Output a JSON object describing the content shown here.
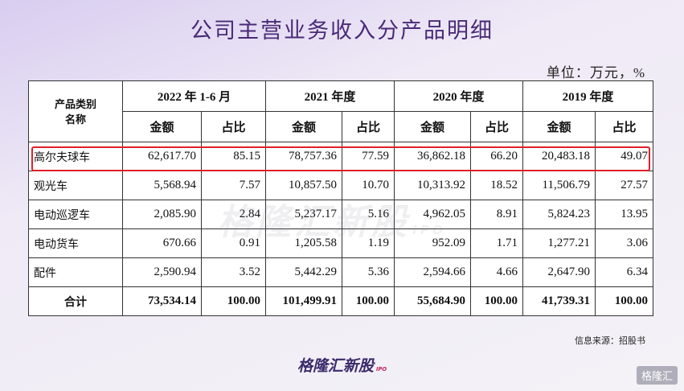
{
  "title": "公司主营业务收入分产品明细",
  "unit": "单位：万元，%",
  "table": {
    "header_top": [
      "产品类别名称",
      "2022 年 1-6 月",
      "2021 年度",
      "2020 年度",
      "2019 年度"
    ],
    "header_sub": [
      "金额",
      "占比",
      "金额",
      "占比",
      "金额",
      "占比",
      "金额",
      "占比"
    ],
    "rows": [
      [
        "高尔夫球车",
        "62,617.70",
        "85.15",
        "78,757.36",
        "77.59",
        "36,862.18",
        "66.20",
        "20,483.18",
        "49.07"
      ],
      [
        "观光车",
        "5,568.94",
        "7.57",
        "10,857.50",
        "10.70",
        "10,313.92",
        "18.52",
        "11,506.79",
        "27.57"
      ],
      [
        "电动巡逻车",
        "2,085.90",
        "2.84",
        "5,237.17",
        "5.16",
        "4,962.05",
        "8.91",
        "5,824.23",
        "13.95"
      ],
      [
        "电动货车",
        "670.66",
        "0.91",
        "1,205.58",
        "1.19",
        "952.09",
        "1.71",
        "1,277.21",
        "3.06"
      ],
      [
        "配件",
        "2,590.94",
        "3.52",
        "5,442.29",
        "5.36",
        "2,594.66",
        "4.66",
        "2,647.90",
        "6.34"
      ],
      [
        "合计",
        "73,534.14",
        "100.00",
        "101,499.91",
        "100.00",
        "55,684.90",
        "100.00",
        "41,739.31",
        "100.00"
      ]
    ]
  },
  "source": "信息来源：招股书",
  "watermark": {
    "name": "格隆汇新股",
    "suffix": "IPO"
  },
  "logo": {
    "name": "格隆汇新股",
    "suffix": "IPO"
  },
  "corner_logo": "格隆汇"
}
